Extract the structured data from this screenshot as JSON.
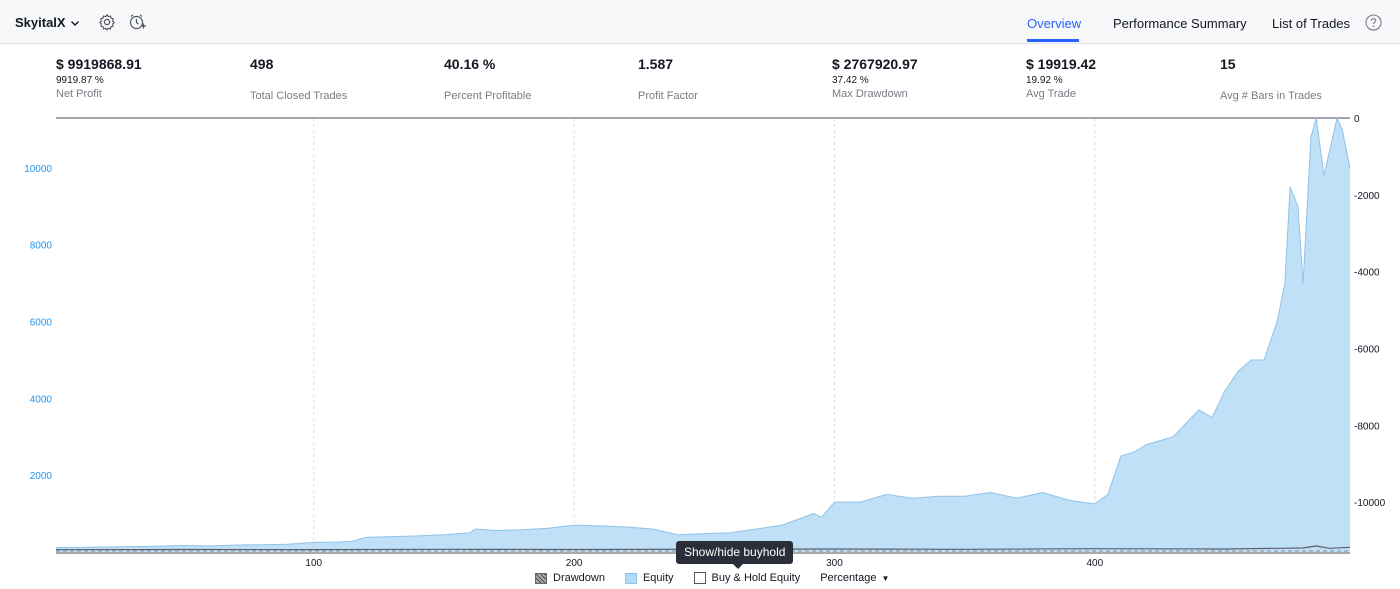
{
  "header": {
    "strategy_name": "SkyitalX",
    "tabs": [
      "Overview",
      "Performance Summary",
      "List of Trades"
    ],
    "active_tab": "Overview"
  },
  "stats": [
    {
      "value": "$ 9919868.91",
      "sub": "9919.87 %",
      "label": "Net Profit"
    },
    {
      "value": "498",
      "sub": "",
      "label": "Total Closed Trades"
    },
    {
      "value": "40.16 %",
      "sub": "",
      "label": "Percent Profitable"
    },
    {
      "value": "1.587",
      "sub": "",
      "label": "Profit Factor"
    },
    {
      "value": "$ 2767920.97",
      "sub": "37.42 %",
      "label": "Max Drawdown"
    },
    {
      "value": "$ 19919.42",
      "sub": "19.92 %",
      "label": "Avg Trade"
    },
    {
      "value": "15",
      "sub": "",
      "label": "Avg # Bars in Trades"
    }
  ],
  "tooltip": "Show/hide buyhold",
  "legend": {
    "drawdown": "Drawdown",
    "equity": "Equity",
    "buyhold": "Buy & Hold Equity",
    "mode": "Percentage",
    "buyhold_checked": false
  },
  "colors": {
    "equity_fill": "#bfe0f7",
    "equity_line": "#8fc3ea",
    "drawdown": "#5d606b",
    "accent": "#2962ff",
    "left_axis": "#2196f3"
  },
  "chart_data": {
    "type": "area",
    "x_ticks": [
      100,
      200,
      300,
      400
    ],
    "xlim": [
      1,
      498
    ],
    "left_axis": {
      "ticks": [
        2000,
        4000,
        6000,
        8000,
        10000
      ],
      "ylim": [
        0,
        11300
      ]
    },
    "right_axis": {
      "ticks": [
        0,
        -2000,
        -4000,
        -6000,
        -8000,
        -10000
      ],
      "ylim": [
        -11300,
        0
      ]
    },
    "series": [
      {
        "name": "Equity",
        "x": [
          1,
          10,
          20,
          30,
          40,
          50,
          60,
          70,
          80,
          90,
          100,
          110,
          115,
          120,
          130,
          140,
          150,
          160,
          162,
          170,
          180,
          190,
          200,
          210,
          220,
          230,
          240,
          250,
          260,
          270,
          280,
          290,
          292,
          295,
          300,
          310,
          320,
          330,
          340,
          350,
          360,
          370,
          380,
          390,
          400,
          405,
          410,
          415,
          420,
          430,
          440,
          445,
          450,
          455,
          460,
          465,
          470,
          473,
          475,
          478,
          480,
          483,
          485,
          488,
          490,
          493,
          495,
          498
        ],
        "values": [
          120,
          120,
          130,
          140,
          150,
          170,
          160,
          180,
          190,
          200,
          250,
          260,
          280,
          380,
          400,
          420,
          450,
          500,
          600,
          560,
          580,
          620,
          700,
          680,
          650,
          600,
          450,
          480,
          500,
          600,
          700,
          950,
          1000,
          900,
          1300,
          1300,
          1500,
          1400,
          1450,
          1450,
          1550,
          1400,
          1550,
          1350,
          1250,
          1500,
          2500,
          2600,
          2800,
          3000,
          3700,
          3500,
          4200,
          4700,
          5000,
          5000,
          6000,
          7000,
          9500,
          9000,
          7000,
          10800,
          11300,
          9800,
          10400,
          11300,
          11000,
          10000
        ]
      },
      {
        "name": "Drawdown",
        "x": [
          1,
          50,
          100,
          150,
          200,
          250,
          300,
          350,
          400,
          450,
          480,
          485,
          490,
          498
        ],
        "values": [
          -50,
          -80,
          -60,
          -100,
          -80,
          -120,
          -150,
          -100,
          -200,
          -150,
          -300,
          -600,
          -250,
          -400
        ]
      }
    ]
  }
}
